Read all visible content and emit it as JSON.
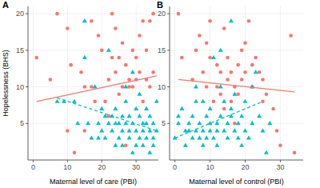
{
  "chart_data": [
    {
      "type": "scatter",
      "title": "A",
      "x_label": "Maternal level of care (PBI)",
      "y_label": "Hopelessness (BHS)",
      "xlim": [
        -1.5,
        36.5
      ],
      "ylim": [
        0,
        21
      ],
      "xticks": [
        0,
        10,
        20,
        30
      ],
      "yticks": [
        5,
        10,
        15,
        20
      ],
      "grid": true,
      "series": [
        {
          "color": "#F8766D",
          "marker": "circle",
          "x": [
            1,
            5,
            7,
            10,
            10,
            11,
            12,
            14,
            15,
            15,
            17,
            17,
            18,
            19,
            20,
            21,
            22,
            22,
            23,
            23,
            24,
            24,
            25,
            25,
            26,
            26,
            27,
            27,
            28,
            29,
            29,
            30,
            31,
            31,
            32,
            32,
            33,
            34,
            34,
            35,
            35,
            33,
            30,
            28
          ],
          "values": [
            14,
            11,
            20,
            18,
            4,
            13,
            1,
            12,
            10,
            4,
            10,
            19,
            8,
            17,
            15,
            8,
            11,
            6,
            20,
            14,
            18,
            12,
            9,
            14,
            10,
            16,
            13,
            2,
            11,
            10,
            15,
            14,
            12,
            17,
            19,
            8,
            15,
            19,
            10,
            20,
            12,
            11,
            11,
            10
          ]
        },
        {
          "color": "#00BFC4",
          "marker": "triangle",
          "x": [
            7,
            9,
            12,
            13,
            15,
            15,
            16,
            17,
            18,
            19,
            19,
            20,
            20,
            21,
            21,
            22,
            22,
            23,
            23,
            24,
            24,
            25,
            25,
            26,
            26,
            26,
            27,
            27,
            28,
            28,
            28,
            29,
            29,
            30,
            30,
            30,
            31,
            31,
            32,
            32,
            32,
            33,
            33,
            33,
            34,
            34,
            34,
            35,
            35,
            35,
            36,
            29,
            31,
            27,
            24,
            36
          ],
          "values": [
            8,
            8,
            8,
            5,
            14,
            19,
            5,
            3,
            10,
            5,
            3,
            7,
            4,
            6,
            3,
            5,
            15,
            6,
            4,
            2,
            7,
            5,
            3,
            4,
            6,
            2,
            5,
            8,
            4,
            3,
            6,
            1,
            5,
            4,
            7,
            2,
            3,
            6,
            5,
            4,
            2,
            7,
            3,
            5,
            4,
            1,
            6,
            3,
            5,
            2,
            4,
            12,
            9,
            10,
            5,
            8
          ]
        },
        {
          "type": "line",
          "line_style": "solid",
          "color": "#F8766D",
          "x": [
            1,
            36
          ],
          "values": [
            8,
            11.5
          ]
        },
        {
          "type": "line",
          "line_style": "dashed",
          "color": "#00BFC4",
          "x": [
            7,
            36
          ],
          "values": [
            8.5,
            4
          ]
        }
      ]
    },
    {
      "type": "scatter",
      "title": "B",
      "x_label": "Maternal level of control (PBI)",
      "xlim": [
        -1.5,
        36.5
      ],
      "ylim": [
        0,
        21
      ],
      "xticks": [
        0,
        10,
        20,
        30
      ],
      "yticks": [
        5,
        10,
        15,
        20
      ],
      "grid": true,
      "series": [
        {
          "color": "#F8766D",
          "marker": "circle",
          "x": [
            1,
            2,
            5,
            6,
            7,
            8,
            9,
            10,
            10,
            11,
            12,
            12,
            13,
            13,
            14,
            15,
            15,
            16,
            16,
            17,
            17,
            18,
            19,
            19,
            20,
            20,
            21,
            22,
            22,
            23,
            24,
            25,
            25,
            26,
            28,
            29,
            30,
            34,
            33,
            9,
            14,
            18
          ],
          "values": [
            20,
            14,
            11,
            15,
            17,
            12,
            16,
            14,
            19,
            8,
            10,
            13,
            9,
            12,
            18,
            11,
            14,
            12,
            8,
            10,
            5,
            9,
            15,
            11,
            12,
            16,
            19,
            13,
            10,
            14,
            12,
            8,
            11,
            9,
            7,
            4,
            2,
            1,
            17,
            10,
            7,
            13
          ]
        },
        {
          "color": "#00BFC4",
          "marker": "triangle",
          "x": [
            0,
            1,
            1,
            2,
            3,
            3,
            4,
            4,
            5,
            5,
            6,
            6,
            7,
            7,
            8,
            8,
            8,
            9,
            9,
            10,
            10,
            10,
            11,
            11,
            12,
            12,
            12,
            13,
            13,
            14,
            14,
            15,
            15,
            16,
            16,
            17,
            17,
            18,
            18,
            19,
            19,
            20,
            20,
            21,
            22,
            22,
            23,
            24,
            25,
            26,
            27,
            16,
            13,
            6
          ],
          "values": [
            3,
            5,
            6,
            7,
            4,
            2,
            4,
            5,
            3,
            6,
            8,
            4,
            3,
            5,
            4,
            2,
            8,
            6,
            3,
            4,
            5,
            7,
            14,
            3,
            5,
            4,
            2,
            6,
            10,
            4,
            8,
            3,
            5,
            7,
            6,
            4,
            9,
            3,
            5,
            2,
            6,
            4,
            8,
            3,
            10,
            5,
            12,
            6,
            4,
            1,
            5,
            19,
            15,
            10
          ]
        },
        {
          "type": "line",
          "line_style": "solid",
          "color": "#F8766D",
          "x": [
            1,
            34
          ],
          "values": [
            11,
            9.3
          ]
        },
        {
          "type": "line",
          "line_style": "dashed",
          "color": "#00BFC4",
          "x": [
            0,
            25
          ],
          "values": [
            3,
            8
          ]
        }
      ]
    }
  ]
}
